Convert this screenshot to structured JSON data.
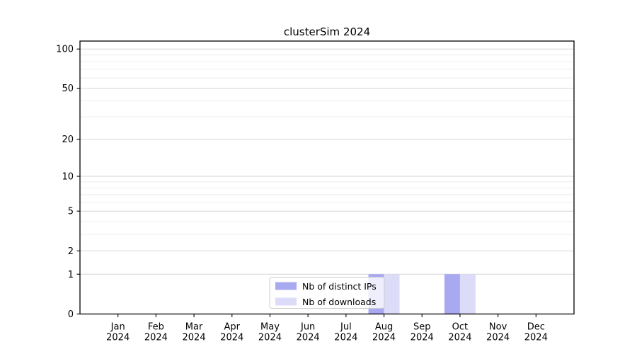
{
  "chart_data": {
    "type": "bar",
    "title": "clusterSim 2024",
    "categories": [
      "Jan",
      "Feb",
      "Mar",
      "Apr",
      "May",
      "Jun",
      "Jul",
      "Aug",
      "Sep",
      "Oct",
      "Nov",
      "Dec"
    ],
    "category_year": "2024",
    "series": [
      {
        "name": "Nb of distinct IPs",
        "color": "#a9a9f1",
        "values": [
          0,
          0,
          0,
          0,
          0,
          0,
          0,
          1,
          0,
          1,
          0,
          0
        ]
      },
      {
        "name": "Nb of downloads",
        "color": "#dcdcf8",
        "values": [
          0,
          0,
          0,
          0,
          0,
          0,
          0,
          1,
          0,
          1,
          0,
          0
        ]
      }
    ],
    "xlabel": "",
    "ylabel": "",
    "y_scale": "log1p",
    "ylim": [
      0,
      115
    ],
    "y_major_ticks": [
      0,
      1,
      2,
      5,
      10,
      20,
      50,
      100
    ],
    "y_minor_ticks": [
      3,
      4,
      6,
      7,
      8,
      9,
      30,
      40,
      60,
      70,
      80,
      90
    ],
    "grid": "on",
    "legend_position": "lower center",
    "legend_entries": [
      "Nb of distinct IPs",
      "Nb of downloads"
    ]
  },
  "colors": {
    "background": "#ffffff",
    "spine": "#000000",
    "grid_major": "#d4d4d4",
    "grid_minor": "#ededed",
    "bar_distinct_ips": "#a9a9f1",
    "bar_downloads": "#dcdcf8",
    "legend_border": "#cccccc",
    "legend_background": "rgba(255,255,255,0.8)",
    "text": "#000000"
  }
}
